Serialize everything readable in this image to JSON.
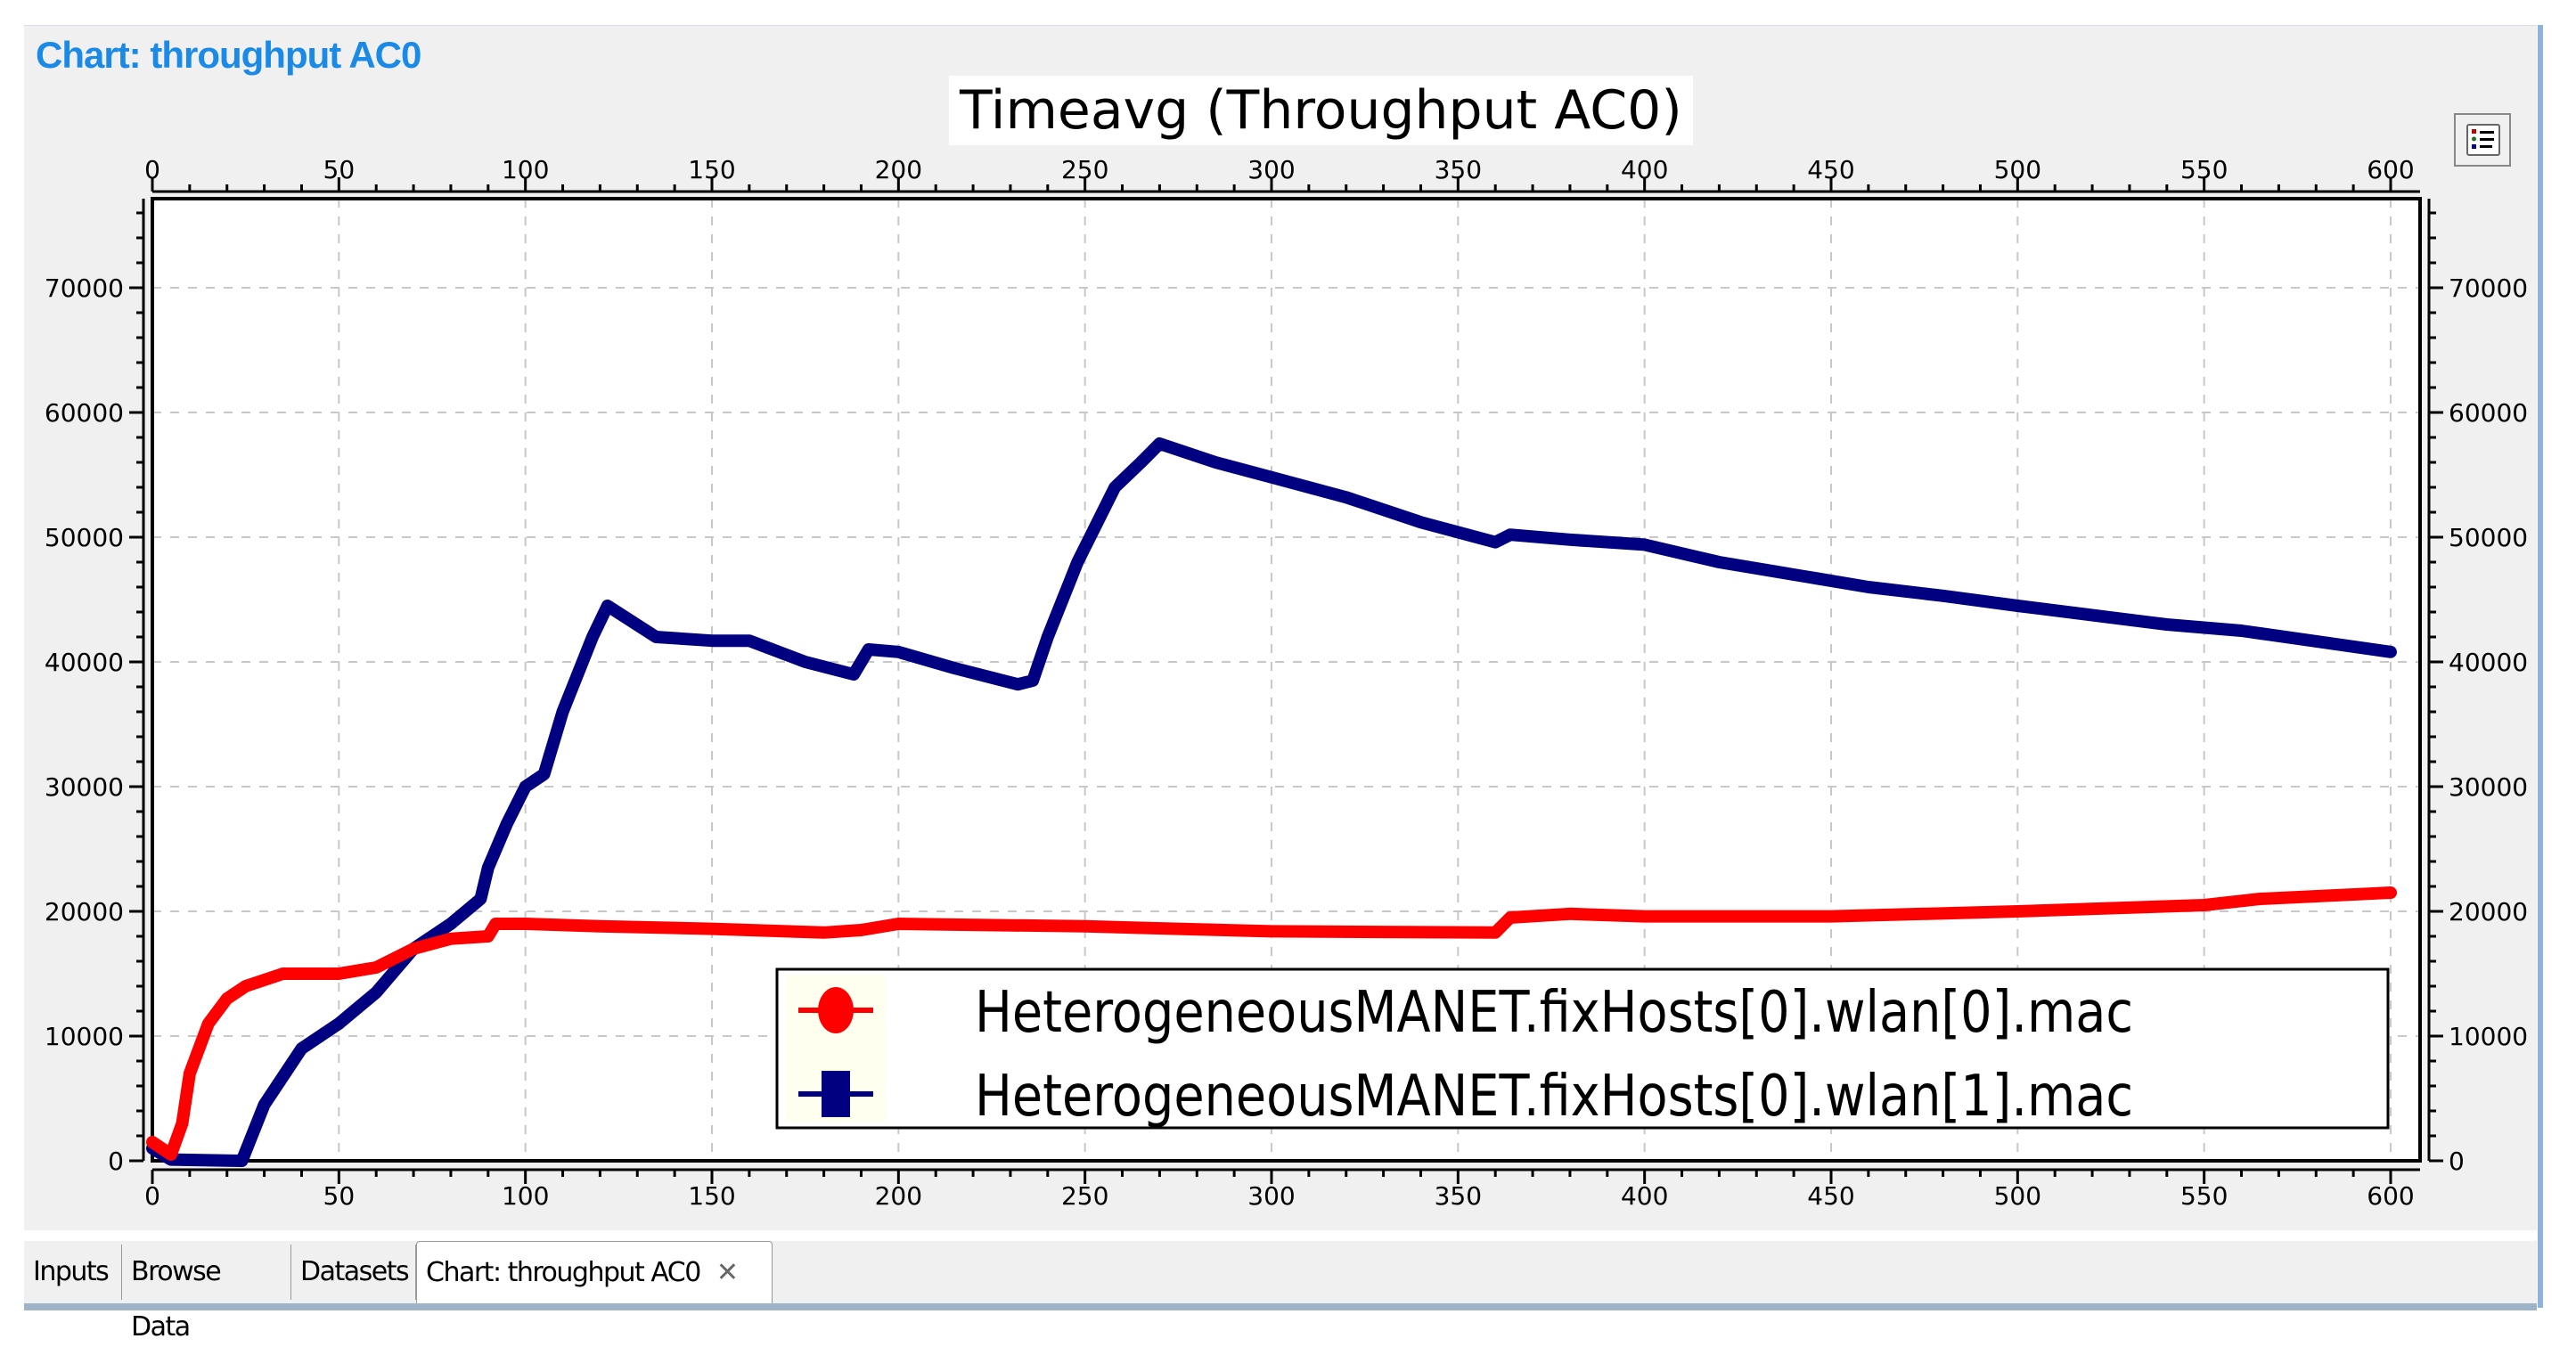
{
  "header": {
    "chart_heading": "Chart: throughput AC0"
  },
  "legend_toggle": {
    "icon": "legend-list-icon"
  },
  "tabs": [
    {
      "label": "Inputs",
      "active": false
    },
    {
      "label": "Browse Data",
      "active": false
    },
    {
      "label": "Datasets",
      "active": false
    },
    {
      "label": "Chart: throughput AC0",
      "active": true,
      "close_icon": "close-icon"
    }
  ],
  "colors": {
    "series_0": "#ff0000",
    "series_1": "#000080",
    "heading": "#1a8ae6"
  },
  "chart_data": {
    "type": "line",
    "title": "Timeavg (Throughput AC0)",
    "xlabel": "",
    "ylabel": "",
    "xlim": [
      0,
      600
    ],
    "ylim": [
      0,
      77000
    ],
    "x_ticks": [
      0,
      50,
      100,
      150,
      200,
      250,
      300,
      350,
      400,
      450,
      500,
      550,
      600
    ],
    "y_ticks": [
      0,
      10000,
      20000,
      30000,
      40000,
      50000,
      60000,
      70000
    ],
    "grid": true,
    "legend_position": "lower right",
    "series": [
      {
        "name": "HeterogeneousMANET.fixHosts[0].wlan[0].mac",
        "color": "#ff0000",
        "marker": "circle",
        "points": [
          [
            0,
            1500
          ],
          [
            5,
            500
          ],
          [
            8,
            3000
          ],
          [
            10,
            7000
          ],
          [
            15,
            11000
          ],
          [
            20,
            13000
          ],
          [
            25,
            14000
          ],
          [
            35,
            15000
          ],
          [
            50,
            15000
          ],
          [
            60,
            15500
          ],
          [
            70,
            17000
          ],
          [
            80,
            17800
          ],
          [
            90,
            18000
          ],
          [
            92,
            19000
          ],
          [
            100,
            19000
          ],
          [
            120,
            18800
          ],
          [
            150,
            18600
          ],
          [
            180,
            18300
          ],
          [
            190,
            18500
          ],
          [
            200,
            19000
          ],
          [
            250,
            18800
          ],
          [
            300,
            18400
          ],
          [
            360,
            18300
          ],
          [
            364,
            19500
          ],
          [
            380,
            19800
          ],
          [
            400,
            19600
          ],
          [
            450,
            19600
          ],
          [
            500,
            20000
          ],
          [
            550,
            20500
          ],
          [
            565,
            21000
          ],
          [
            600,
            21500
          ]
        ]
      },
      {
        "name": "HeterogeneousMANET.fixHosts[0].wlan[1].mac",
        "color": "#000080",
        "marker": "square",
        "points": [
          [
            0,
            1000
          ],
          [
            5,
            100
          ],
          [
            24,
            0
          ],
          [
            30,
            4500
          ],
          [
            40,
            9000
          ],
          [
            50,
            11000
          ],
          [
            60,
            13500
          ],
          [
            70,
            17000
          ],
          [
            80,
            19000
          ],
          [
            88,
            21000
          ],
          [
            90,
            23500
          ],
          [
            95,
            27000
          ],
          [
            100,
            30000
          ],
          [
            105,
            31000
          ],
          [
            110,
            36000
          ],
          [
            118,
            42000
          ],
          [
            122,
            44500
          ],
          [
            135,
            42000
          ],
          [
            150,
            41700
          ],
          [
            160,
            41700
          ],
          [
            175,
            40000
          ],
          [
            188,
            39000
          ],
          [
            192,
            41000
          ],
          [
            200,
            40800
          ],
          [
            215,
            39500
          ],
          [
            232,
            38200
          ],
          [
            236,
            38500
          ],
          [
            240,
            42000
          ],
          [
            248,
            48000
          ],
          [
            258,
            54000
          ],
          [
            265,
            56000
          ],
          [
            270,
            57500
          ],
          [
            285,
            56000
          ],
          [
            300,
            54800
          ],
          [
            320,
            53200
          ],
          [
            340,
            51200
          ],
          [
            360,
            49600
          ],
          [
            364,
            50200
          ],
          [
            380,
            49800
          ],
          [
            400,
            49400
          ],
          [
            420,
            48000
          ],
          [
            440,
            47000
          ],
          [
            460,
            46000
          ],
          [
            480,
            45300
          ],
          [
            500,
            44500
          ],
          [
            540,
            43000
          ],
          [
            560,
            42500
          ],
          [
            600,
            40800
          ]
        ]
      }
    ]
  }
}
